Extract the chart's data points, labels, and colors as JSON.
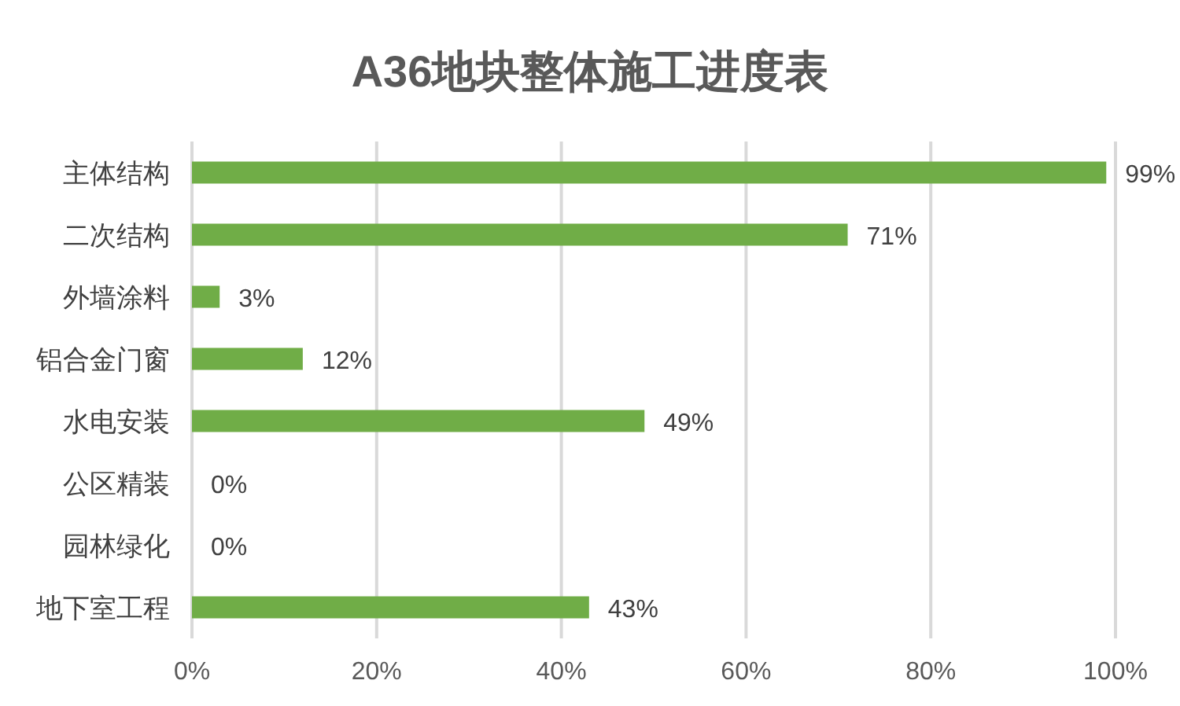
{
  "chart_data": {
    "type": "bar",
    "orientation": "horizontal",
    "title": "A36地块整体施工进度表",
    "categories": [
      "主体结构",
      "二次结构",
      "外墙涂料",
      "铝合金门窗",
      "水电安装",
      "公区精装",
      "园林绿化",
      "地下室工程"
    ],
    "values": [
      99,
      71,
      3,
      12,
      49,
      0,
      0,
      43
    ],
    "value_labels": [
      "99%",
      "71%",
      "3%",
      "12%",
      "49%",
      "0%",
      "0%",
      "43%"
    ],
    "color": "#70ad47",
    "xlim": [
      0,
      100
    ],
    "xticks": [
      {
        "value": 0,
        "label": "0%"
      },
      {
        "value": 20,
        "label": "20%"
      },
      {
        "value": 40,
        "label": "40%"
      },
      {
        "value": 60,
        "label": "60%"
      },
      {
        "value": 80,
        "label": "80%"
      },
      {
        "value": 100,
        "label": "100%"
      }
    ],
    "grid": "x"
  }
}
